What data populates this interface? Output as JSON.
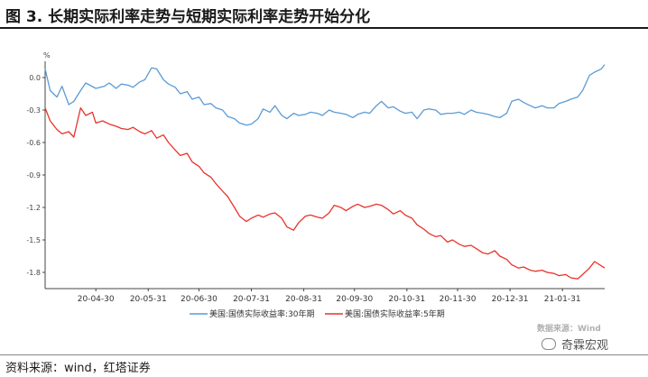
{
  "figure": {
    "title": "图 3. 长期实际利率走势与短期实际利率走势开始分化",
    "source": "资料来源：wind，红塔证券",
    "watermark": "数据来源：Wind",
    "logo_text": "奇霖宏观"
  },
  "chart_data": {
    "type": "line",
    "title": "",
    "unit_label": "%",
    "xlabel": "",
    "ylabel": "",
    "ylim": [
      -1.95,
      0.15
    ],
    "yticks": [
      0.0,
      -0.3,
      -0.6,
      -0.9,
      -1.2,
      -1.5,
      -1.8
    ],
    "ytick_labels": [
      "0.0",
      "-0.3",
      "-0.6",
      "-0.9",
      "-1.2",
      "-1.5",
      "-1.8"
    ],
    "x_range": [
      "2020-03-31",
      "2021-02-25"
    ],
    "xticks": [
      "2020-04-30",
      "2020-05-31",
      "2020-06-30",
      "2020-07-31",
      "2020-08-31",
      "2020-09-30",
      "2020-10-31",
      "2020-11-30",
      "2020-12-31",
      "2021-01-31"
    ],
    "xtick_labels": [
      "20-04-30",
      "20-05-31",
      "20-06-30",
      "20-07-31",
      "20-08-31",
      "20-09-30",
      "20-10-31",
      "20-11-30",
      "20-12-31",
      "21-01-31"
    ],
    "grid": false,
    "legend_position": "bottom",
    "series": [
      {
        "name": "美国:国债实际收益率:30年期",
        "color": "#5b9bd5",
        "points": [
          [
            "2020-03-31",
            0.08
          ],
          [
            "2020-04-03",
            -0.12
          ],
          [
            "2020-04-07",
            -0.18
          ],
          [
            "2020-04-10",
            -0.08
          ],
          [
            "2020-04-14",
            -0.25
          ],
          [
            "2020-04-17",
            -0.22
          ],
          [
            "2020-04-21",
            -0.12
          ],
          [
            "2020-04-24",
            -0.05
          ],
          [
            "2020-04-30",
            -0.1
          ],
          [
            "2020-05-05",
            -0.08
          ],
          [
            "2020-05-08",
            -0.05
          ],
          [
            "2020-05-12",
            -0.1
          ],
          [
            "2020-05-15",
            -0.06
          ],
          [
            "2020-05-19",
            -0.07
          ],
          [
            "2020-05-22",
            -0.09
          ],
          [
            "2020-05-26",
            -0.04
          ],
          [
            "2020-05-29",
            -0.02
          ],
          [
            "2020-06-02",
            0.09
          ],
          [
            "2020-06-05",
            0.08
          ],
          [
            "2020-06-09",
            -0.02
          ],
          [
            "2020-06-12",
            -0.06
          ],
          [
            "2020-06-16",
            -0.09
          ],
          [
            "2020-06-19",
            -0.15
          ],
          [
            "2020-06-23",
            -0.13
          ],
          [
            "2020-06-26",
            -0.2
          ],
          [
            "2020-06-30",
            -0.18
          ],
          [
            "2020-07-03",
            -0.25
          ],
          [
            "2020-07-07",
            -0.24
          ],
          [
            "2020-07-10",
            -0.28
          ],
          [
            "2020-07-14",
            -0.3
          ],
          [
            "2020-07-17",
            -0.36
          ],
          [
            "2020-07-21",
            -0.38
          ],
          [
            "2020-07-24",
            -0.42
          ],
          [
            "2020-07-28",
            -0.44
          ],
          [
            "2020-07-31",
            -0.43
          ],
          [
            "2020-08-04",
            -0.38
          ],
          [
            "2020-08-07",
            -0.29
          ],
          [
            "2020-08-11",
            -0.32
          ],
          [
            "2020-08-14",
            -0.26
          ],
          [
            "2020-08-18",
            -0.35
          ],
          [
            "2020-08-21",
            -0.38
          ],
          [
            "2020-08-25",
            -0.33
          ],
          [
            "2020-08-28",
            -0.35
          ],
          [
            "2020-09-01",
            -0.34
          ],
          [
            "2020-09-04",
            -0.32
          ],
          [
            "2020-09-08",
            -0.33
          ],
          [
            "2020-09-11",
            -0.35
          ],
          [
            "2020-09-15",
            -0.3
          ],
          [
            "2020-09-18",
            -0.32
          ],
          [
            "2020-09-22",
            -0.33
          ],
          [
            "2020-09-25",
            -0.34
          ],
          [
            "2020-09-29",
            -0.37
          ],
          [
            "2020-10-02",
            -0.34
          ],
          [
            "2020-10-06",
            -0.32
          ],
          [
            "2020-10-09",
            -0.33
          ],
          [
            "2020-10-13",
            -0.26
          ],
          [
            "2020-10-16",
            -0.22
          ],
          [
            "2020-10-20",
            -0.28
          ],
          [
            "2020-10-23",
            -0.27
          ],
          [
            "2020-10-27",
            -0.31
          ],
          [
            "2020-10-30",
            -0.33
          ],
          [
            "2020-11-03",
            -0.32
          ],
          [
            "2020-11-06",
            -0.38
          ],
          [
            "2020-11-10",
            -0.3
          ],
          [
            "2020-11-13",
            -0.29
          ],
          [
            "2020-11-17",
            -0.3
          ],
          [
            "2020-11-20",
            -0.34
          ],
          [
            "2020-11-24",
            -0.33
          ],
          [
            "2020-11-27",
            -0.33
          ],
          [
            "2020-12-01",
            -0.32
          ],
          [
            "2020-12-04",
            -0.34
          ],
          [
            "2020-12-08",
            -0.3
          ],
          [
            "2020-12-11",
            -0.32
          ],
          [
            "2020-12-15",
            -0.33
          ],
          [
            "2020-12-18",
            -0.34
          ],
          [
            "2020-12-22",
            -0.36
          ],
          [
            "2020-12-25",
            -0.37
          ],
          [
            "2020-12-29",
            -0.33
          ],
          [
            "2021-01-01",
            -0.22
          ],
          [
            "2021-01-05",
            -0.2
          ],
          [
            "2021-01-08",
            -0.23
          ],
          [
            "2021-01-12",
            -0.26
          ],
          [
            "2021-01-15",
            -0.28
          ],
          [
            "2021-01-19",
            -0.26
          ],
          [
            "2021-01-22",
            -0.28
          ],
          [
            "2021-01-26",
            -0.28
          ],
          [
            "2021-01-29",
            -0.24
          ],
          [
            "2021-02-02",
            -0.22
          ],
          [
            "2021-02-05",
            -0.2
          ],
          [
            "2021-02-09",
            -0.18
          ],
          [
            "2021-02-12",
            -0.12
          ],
          [
            "2021-02-16",
            0.02
          ],
          [
            "2021-02-19",
            0.05
          ],
          [
            "2021-02-23",
            0.08
          ],
          [
            "2021-02-25",
            0.12
          ]
        ]
      },
      {
        "name": "美国:国债实际收益率:5年期",
        "color": "#e8332a",
        "points": [
          [
            "2020-03-31",
            -0.28
          ],
          [
            "2020-04-03",
            -0.4
          ],
          [
            "2020-04-07",
            -0.48
          ],
          [
            "2020-04-10",
            -0.52
          ],
          [
            "2020-04-14",
            -0.5
          ],
          [
            "2020-04-17",
            -0.55
          ],
          [
            "2020-04-21",
            -0.28
          ],
          [
            "2020-04-24",
            -0.35
          ],
          [
            "2020-04-28",
            -0.32
          ],
          [
            "2020-04-30",
            -0.42
          ],
          [
            "2020-05-04",
            -0.4
          ],
          [
            "2020-05-08",
            -0.43
          ],
          [
            "2020-05-12",
            -0.45
          ],
          [
            "2020-05-15",
            -0.47
          ],
          [
            "2020-05-19",
            -0.48
          ],
          [
            "2020-05-22",
            -0.46
          ],
          [
            "2020-05-26",
            -0.5
          ],
          [
            "2020-05-29",
            -0.52
          ],
          [
            "2020-06-02",
            -0.49
          ],
          [
            "2020-06-05",
            -0.56
          ],
          [
            "2020-06-09",
            -0.53
          ],
          [
            "2020-06-12",
            -0.6
          ],
          [
            "2020-06-16",
            -0.67
          ],
          [
            "2020-06-19",
            -0.72
          ],
          [
            "2020-06-23",
            -0.7
          ],
          [
            "2020-06-26",
            -0.78
          ],
          [
            "2020-06-30",
            -0.82
          ],
          [
            "2020-07-03",
            -0.88
          ],
          [
            "2020-07-07",
            -0.92
          ],
          [
            "2020-07-10",
            -0.98
          ],
          [
            "2020-07-14",
            -1.05
          ],
          [
            "2020-07-17",
            -1.1
          ],
          [
            "2020-07-21",
            -1.2
          ],
          [
            "2020-07-24",
            -1.28
          ],
          [
            "2020-07-28",
            -1.33
          ],
          [
            "2020-07-31",
            -1.3
          ],
          [
            "2020-08-04",
            -1.27
          ],
          [
            "2020-08-07",
            -1.29
          ],
          [
            "2020-08-11",
            -1.26
          ],
          [
            "2020-08-14",
            -1.25
          ],
          [
            "2020-08-18",
            -1.3
          ],
          [
            "2020-08-21",
            -1.38
          ],
          [
            "2020-08-25",
            -1.41
          ],
          [
            "2020-08-28",
            -1.34
          ],
          [
            "2020-09-01",
            -1.28
          ],
          [
            "2020-09-04",
            -1.27
          ],
          [
            "2020-09-08",
            -1.29
          ],
          [
            "2020-09-11",
            -1.3
          ],
          [
            "2020-09-15",
            -1.25
          ],
          [
            "2020-09-18",
            -1.18
          ],
          [
            "2020-09-22",
            -1.2
          ],
          [
            "2020-09-25",
            -1.23
          ],
          [
            "2020-09-29",
            -1.19
          ],
          [
            "2020-10-02",
            -1.17
          ],
          [
            "2020-10-06",
            -1.2
          ],
          [
            "2020-10-09",
            -1.19
          ],
          [
            "2020-10-13",
            -1.17
          ],
          [
            "2020-10-16",
            -1.18
          ],
          [
            "2020-10-20",
            -1.22
          ],
          [
            "2020-10-23",
            -1.26
          ],
          [
            "2020-10-27",
            -1.23
          ],
          [
            "2020-10-30",
            -1.27
          ],
          [
            "2020-11-03",
            -1.3
          ],
          [
            "2020-11-06",
            -1.36
          ],
          [
            "2020-11-10",
            -1.4
          ],
          [
            "2020-11-13",
            -1.44
          ],
          [
            "2020-11-17",
            -1.47
          ],
          [
            "2020-11-20",
            -1.46
          ],
          [
            "2020-11-24",
            -1.52
          ],
          [
            "2020-11-27",
            -1.5
          ],
          [
            "2020-12-01",
            -1.54
          ],
          [
            "2020-12-04",
            -1.56
          ],
          [
            "2020-12-08",
            -1.55
          ],
          [
            "2020-12-11",
            -1.58
          ],
          [
            "2020-12-15",
            -1.62
          ],
          [
            "2020-12-18",
            -1.63
          ],
          [
            "2020-12-22",
            -1.6
          ],
          [
            "2020-12-25",
            -1.65
          ],
          [
            "2020-12-29",
            -1.68
          ],
          [
            "2021-01-01",
            -1.73
          ],
          [
            "2021-01-05",
            -1.76
          ],
          [
            "2021-01-08",
            -1.75
          ],
          [
            "2021-01-12",
            -1.78
          ],
          [
            "2021-01-15",
            -1.79
          ],
          [
            "2021-01-19",
            -1.78
          ],
          [
            "2021-01-22",
            -1.8
          ],
          [
            "2021-01-26",
            -1.81
          ],
          [
            "2021-01-29",
            -1.83
          ],
          [
            "2021-02-02",
            -1.82
          ],
          [
            "2021-02-05",
            -1.85
          ],
          [
            "2021-02-09",
            -1.86
          ],
          [
            "2021-02-12",
            -1.82
          ],
          [
            "2021-02-16",
            -1.76
          ],
          [
            "2021-02-19",
            -1.7
          ],
          [
            "2021-02-23",
            -1.74
          ],
          [
            "2021-02-25",
            -1.76
          ]
        ]
      }
    ]
  }
}
